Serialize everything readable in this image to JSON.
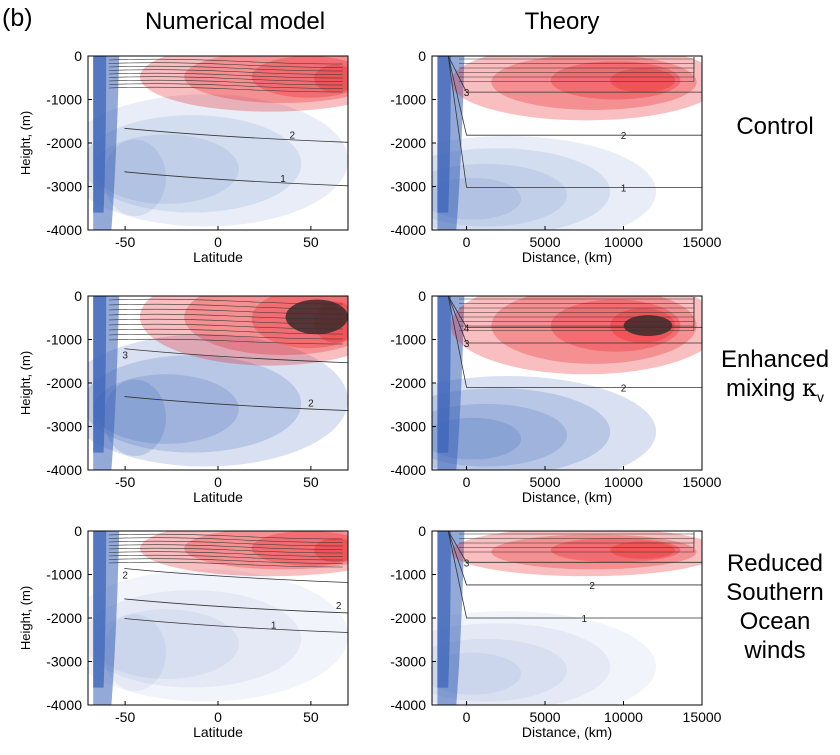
{
  "figure": {
    "panel_label": "(b)",
    "columns": [
      "Numerical model",
      "Theory"
    ],
    "rows": [
      {
        "lines": [
          "Control"
        ]
      },
      {
        "lines": [
          "Enhanced",
          "mixing "
        ],
        "symbol": "κ",
        "subscript": "v"
      },
      {
        "lines": [
          "Reduced",
          "Southern",
          "Ocean",
          "winds"
        ]
      }
    ]
  },
  "colors": {
    "positive": "#e8141c",
    "negative": "#3a63b8",
    "extreme_positive": "#3c2a2a",
    "contour": "#333333"
  },
  "chart_data": [
    {
      "type": "heatmap",
      "row": "Control",
      "column": "Numerical model",
      "xlabel": "Latitude",
      "ylabel": "Height, (m)",
      "xlim": [
        -70,
        70
      ],
      "ylim": [
        -4000,
        0
      ],
      "xticks": [
        -50,
        0,
        50
      ],
      "yticks": [
        0,
        -1000,
        -2000,
        -3000,
        -4000
      ],
      "contour_labels": [
        {
          "text": "2",
          "x": 40,
          "y": -1800
        },
        {
          "text": "1",
          "x": 35,
          "y": -2800
        }
      ]
    },
    {
      "type": "heatmap",
      "row": "Control",
      "column": "Theory",
      "xlabel": "Distance, (km)",
      "ylabel": "",
      "xlim": [
        -2200,
        15000
      ],
      "ylim": [
        -4000,
        0
      ],
      "xticks": [
        0,
        5000,
        10000,
        15000
      ],
      "yticks": [
        0,
        -1000,
        -2000,
        -3000,
        -4000
      ],
      "contour_labels": [
        {
          "text": "3",
          "x": 0,
          "y": -830
        },
        {
          "text": "2",
          "x": 10000,
          "y": -1820
        },
        {
          "text": "1",
          "x": 10000,
          "y": -3020
        }
      ]
    },
    {
      "type": "heatmap",
      "row": "Enhanced mixing κv",
      "column": "Numerical model",
      "xlabel": "Latitude",
      "ylabel": "Height, (m)",
      "xlim": [
        -70,
        70
      ],
      "ylim": [
        -4000,
        0
      ],
      "xticks": [
        -50,
        0,
        50
      ],
      "yticks": [
        0,
        -1000,
        -2000,
        -3000,
        -4000
      ],
      "contour_labels": [
        {
          "text": "2",
          "x": 50,
          "y": -2450
        },
        {
          "text": "3",
          "x": -50,
          "y": -1350
        }
      ]
    },
    {
      "type": "heatmap",
      "row": "Enhanced mixing κv",
      "column": "Theory",
      "xlabel": "Distance, (km)",
      "ylabel": "",
      "xlim": [
        -2200,
        15000
      ],
      "ylim": [
        -4000,
        0
      ],
      "xticks": [
        0,
        5000,
        10000,
        15000
      ],
      "yticks": [
        0,
        -1000,
        -2000,
        -3000,
        -4000
      ],
      "contour_labels": [
        {
          "text": "4",
          "x": 0,
          "y": -720
        },
        {
          "text": "3",
          "x": 0,
          "y": -1080
        },
        {
          "text": "2",
          "x": 10000,
          "y": -2100
        }
      ]
    },
    {
      "type": "heatmap",
      "row": "Reduced Southern Ocean winds",
      "column": "Numerical model",
      "xlabel": "Latitude",
      "ylabel": "Height, (m)",
      "xlim": [
        -70,
        70
      ],
      "ylim": [
        -4000,
        0
      ],
      "xticks": [
        -50,
        0,
        50
      ],
      "yticks": [
        0,
        -1000,
        -2000,
        -3000,
        -4000
      ],
      "contour_labels": [
        {
          "text": "2",
          "x": -50,
          "y": -1000
        },
        {
          "text": "2",
          "x": 65,
          "y": -1700
        },
        {
          "text": "1",
          "x": 30,
          "y": -2150
        }
      ]
    },
    {
      "type": "heatmap",
      "row": "Reduced Southern Ocean winds",
      "column": "Theory",
      "xlabel": "Distance, (km)",
      "ylabel": "",
      "xlim": [
        -2200,
        15000
      ],
      "ylim": [
        -4000,
        0
      ],
      "xticks": [
        0,
        5000,
        10000,
        15000
      ],
      "yticks": [
        0,
        -1000,
        -2000,
        -3000,
        -4000
      ],
      "contour_labels": [
        {
          "text": "3",
          "x": 0,
          "y": -720
        },
        {
          "text": "2",
          "x": 8000,
          "y": -1240
        },
        {
          "text": "1",
          "x": 7500,
          "y": -2000
        }
      ]
    }
  ]
}
